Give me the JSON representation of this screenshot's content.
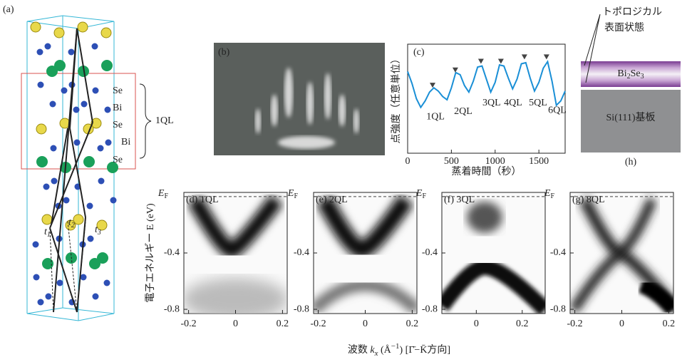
{
  "panel_a": {
    "label": "(a)",
    "layers": [
      "Se",
      "Bi",
      "Se",
      "Bi",
      "Se"
    ],
    "ql": "1QL",
    "hops": [
      {
        "t": "t",
        "sub": "1"
      },
      {
        "t": "t",
        "sub": "2"
      },
      {
        "t": "t",
        "sub": "3"
      }
    ]
  },
  "panel_b": {
    "label": "(b)"
  },
  "panel_h": {
    "label": "(h)",
    "surface_state": [
      "トポロジカル",
      "表面状態"
    ],
    "film": {
      "a": "Bi",
      "a_sub": "2",
      "b": "Se",
      "b_sub": "3"
    },
    "substrate": "Si(111)基板"
  },
  "arpes_axes": {
    "y_label": "電子エネルギー E (eV)",
    "x_label": {
      "pre": "波数 ",
      "k": "k",
      "k_sub": "x",
      "unit": " (Å",
      "unit_sup": "−1",
      "post": ") [Γ̄−K̄方向]"
    }
  },
  "chart_data": [
    {
      "type": "line",
      "label": "(c)",
      "x_label": "蒸着時間（秒）",
      "y_label": "点強度（任意単位）",
      "color": "#1a8fd6",
      "x": [
        0,
        50,
        100,
        150,
        200,
        250,
        300,
        350,
        400,
        450,
        500,
        550,
        600,
        650,
        700,
        750,
        800,
        850,
        900,
        950,
        1000,
        1050,
        1100,
        1150,
        1200,
        1250,
        1300,
        1350,
        1400,
        1450,
        1500,
        1550,
        1600,
        1650,
        1700,
        1750,
        1800
      ],
      "values": [
        7.5,
        6.4,
        5.0,
        4.2,
        4.8,
        5.6,
        6.0,
        5.7,
        5.2,
        4.9,
        6.0,
        7.4,
        7.2,
        6.2,
        5.6,
        6.6,
        7.9,
        8.0,
        6.8,
        5.6,
        6.5,
        8.1,
        8.0,
        6.9,
        5.9,
        6.8,
        8.2,
        8.3,
        6.9,
        5.7,
        6.5,
        7.8,
        8.4,
        6.6,
        4.4,
        4.8,
        5.7
      ],
      "xlim": [
        0,
        1800
      ],
      "ylim": [
        0,
        10
      ],
      "xticks": [
        0,
        500,
        1000,
        1500
      ],
      "peaks": {
        "x": [
          285,
          545,
          838,
          1066,
          1335,
          1587
        ],
        "y": [
          6.2,
          7.6,
          8.4,
          8.4,
          8.8,
          8.8
        ],
        "color": "#444444"
      },
      "annotations": [
        {
          "text": "1QL",
          "x": 318,
          "y": 3.3
        },
        {
          "text": "2QL",
          "x": 635,
          "y": 3.8
        },
        {
          "text": "3QL",
          "x": 960,
          "y": 4.6
        },
        {
          "text": "4QL",
          "x": 1205,
          "y": 4.6
        },
        {
          "text": "5QL",
          "x": 1490,
          "y": 4.6
        },
        {
          "text": "6QL",
          "x": 1710,
          "y": 3.9
        }
      ]
    },
    {
      "type": "image",
      "label": "(d)",
      "title": "1QL",
      "xlim": [
        -0.22,
        0.22
      ],
      "ylim": [
        -0.83,
        0.03
      ],
      "xticks": [
        -0.2,
        0,
        0.2
      ],
      "yticks": [
        {
          "value": 0,
          "label": "E",
          "label_sub": "F"
        },
        -0.4,
        -0.8
      ]
    },
    {
      "type": "image",
      "label": "(e)",
      "title": "2QL",
      "xlim": [
        -0.22,
        0.22
      ],
      "ylim": [
        -0.83,
        0.03
      ],
      "xticks": [
        -0.2,
        0,
        0.2
      ],
      "yticks": [
        {
          "value": 0,
          "label": "E",
          "label_sub": "F"
        },
        -0.4,
        -0.8
      ]
    },
    {
      "type": "image",
      "label": "(f)",
      "title": "3QL",
      "xlim": [
        -0.15,
        0.3
      ],
      "ylim": [
        -0.83,
        0.03
      ],
      "xticks": [
        0,
        0.2
      ],
      "yticks": [
        {
          "value": 0,
          "label": "E",
          "label_sub": "F"
        },
        -0.4,
        -0.8
      ]
    },
    {
      "type": "image",
      "label": "(g)",
      "title": "8QL",
      "xlim": [
        -0.22,
        0.22
      ],
      "ylim": [
        -0.83,
        0.03
      ],
      "xticks": [
        -0.2,
        0,
        0.2
      ],
      "yticks": [
        {
          "value": 0,
          "label": "E",
          "label_sub": "F"
        },
        -0.4,
        -0.8
      ]
    }
  ]
}
